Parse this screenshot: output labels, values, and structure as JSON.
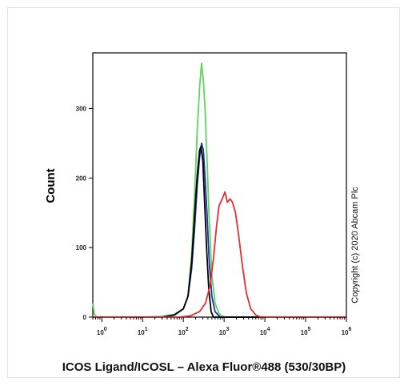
{
  "chart_data": {
    "type": "line",
    "title": "",
    "xlabel": "ICOS Ligand/ICOSL – Alexa Fluor®488 (530/30BP)",
    "ylabel": "Count",
    "xscale": "log",
    "xlim": [
      0.6,
      1000000
    ],
    "ylim": [
      0,
      380
    ],
    "x_ticks": [
      {
        "value": 1,
        "base": "10",
        "exp": "0"
      },
      {
        "value": 10,
        "base": "10",
        "exp": "1"
      },
      {
        "value": 100,
        "base": "10",
        "exp": "2"
      },
      {
        "value": 1000,
        "base": "10",
        "exp": "3"
      },
      {
        "value": 10000,
        "base": "10",
        "exp": "4"
      },
      {
        "value": 100000,
        "base": "10",
        "exp": "5"
      },
      {
        "value": 1000000,
        "base": "10",
        "exp": "6"
      }
    ],
    "y_ticks": [
      0,
      100,
      200,
      300
    ],
    "grid": false,
    "annotation": "Copyright (c) 2020 Abcam Plc",
    "series": [
      {
        "color": "#5bd65b",
        "points": [
          [
            0.6,
            20
          ],
          [
            0.65,
            5
          ],
          [
            0.75,
            0
          ],
          [
            10,
            0
          ],
          [
            30,
            1
          ],
          [
            60,
            4
          ],
          [
            100,
            12
          ],
          [
            130,
            30
          ],
          [
            160,
            90
          ],
          [
            190,
            180
          ],
          [
            220,
            270
          ],
          [
            250,
            330
          ],
          [
            280,
            365
          ],
          [
            310,
            340
          ],
          [
            340,
            300
          ],
          [
            380,
            230
          ],
          [
            430,
            140
          ],
          [
            500,
            60
          ],
          [
            600,
            20
          ],
          [
            750,
            5
          ],
          [
            1000,
            0
          ],
          [
            1000000,
            0
          ]
        ]
      },
      {
        "color": "#2030a0",
        "points": [
          [
            0.6,
            0
          ],
          [
            30,
            0
          ],
          [
            60,
            3
          ],
          [
            100,
            12
          ],
          [
            130,
            30
          ],
          [
            160,
            70
          ],
          [
            190,
            130
          ],
          [
            220,
            190
          ],
          [
            250,
            230
          ],
          [
            280,
            250
          ],
          [
            310,
            240
          ],
          [
            340,
            200
          ],
          [
            380,
            150
          ],
          [
            430,
            80
          ],
          [
            500,
            30
          ],
          [
            600,
            8
          ],
          [
            800,
            0
          ],
          [
            1000000,
            0
          ]
        ]
      },
      {
        "color": "#000000",
        "points": [
          [
            0.6,
            0
          ],
          [
            30,
            0
          ],
          [
            60,
            3
          ],
          [
            100,
            12
          ],
          [
            130,
            30
          ],
          [
            160,
            80
          ],
          [
            190,
            150
          ],
          [
            220,
            205
          ],
          [
            250,
            240
          ],
          [
            270,
            245
          ],
          [
            300,
            225
          ],
          [
            330,
            170
          ],
          [
            370,
            100
          ],
          [
            420,
            40
          ],
          [
            480,
            8
          ],
          [
            550,
            0
          ],
          [
            1000000,
            0
          ]
        ]
      },
      {
        "color": "#e03030",
        "points": [
          [
            0.6,
            0
          ],
          [
            80,
            0
          ],
          [
            150,
            2
          ],
          [
            250,
            8
          ],
          [
            350,
            20
          ],
          [
            450,
            45
          ],
          [
            550,
            85
          ],
          [
            650,
            130
          ],
          [
            750,
            160
          ],
          [
            900,
            170
          ],
          [
            1050,
            180
          ],
          [
            1200,
            165
          ],
          [
            1400,
            170
          ],
          [
            1600,
            165
          ],
          [
            1900,
            150
          ],
          [
            2300,
            115
          ],
          [
            2800,
            75
          ],
          [
            3500,
            35
          ],
          [
            4500,
            12
          ],
          [
            6000,
            3
          ],
          [
            8000,
            0
          ],
          [
            1000000,
            0
          ]
        ]
      }
    ]
  }
}
